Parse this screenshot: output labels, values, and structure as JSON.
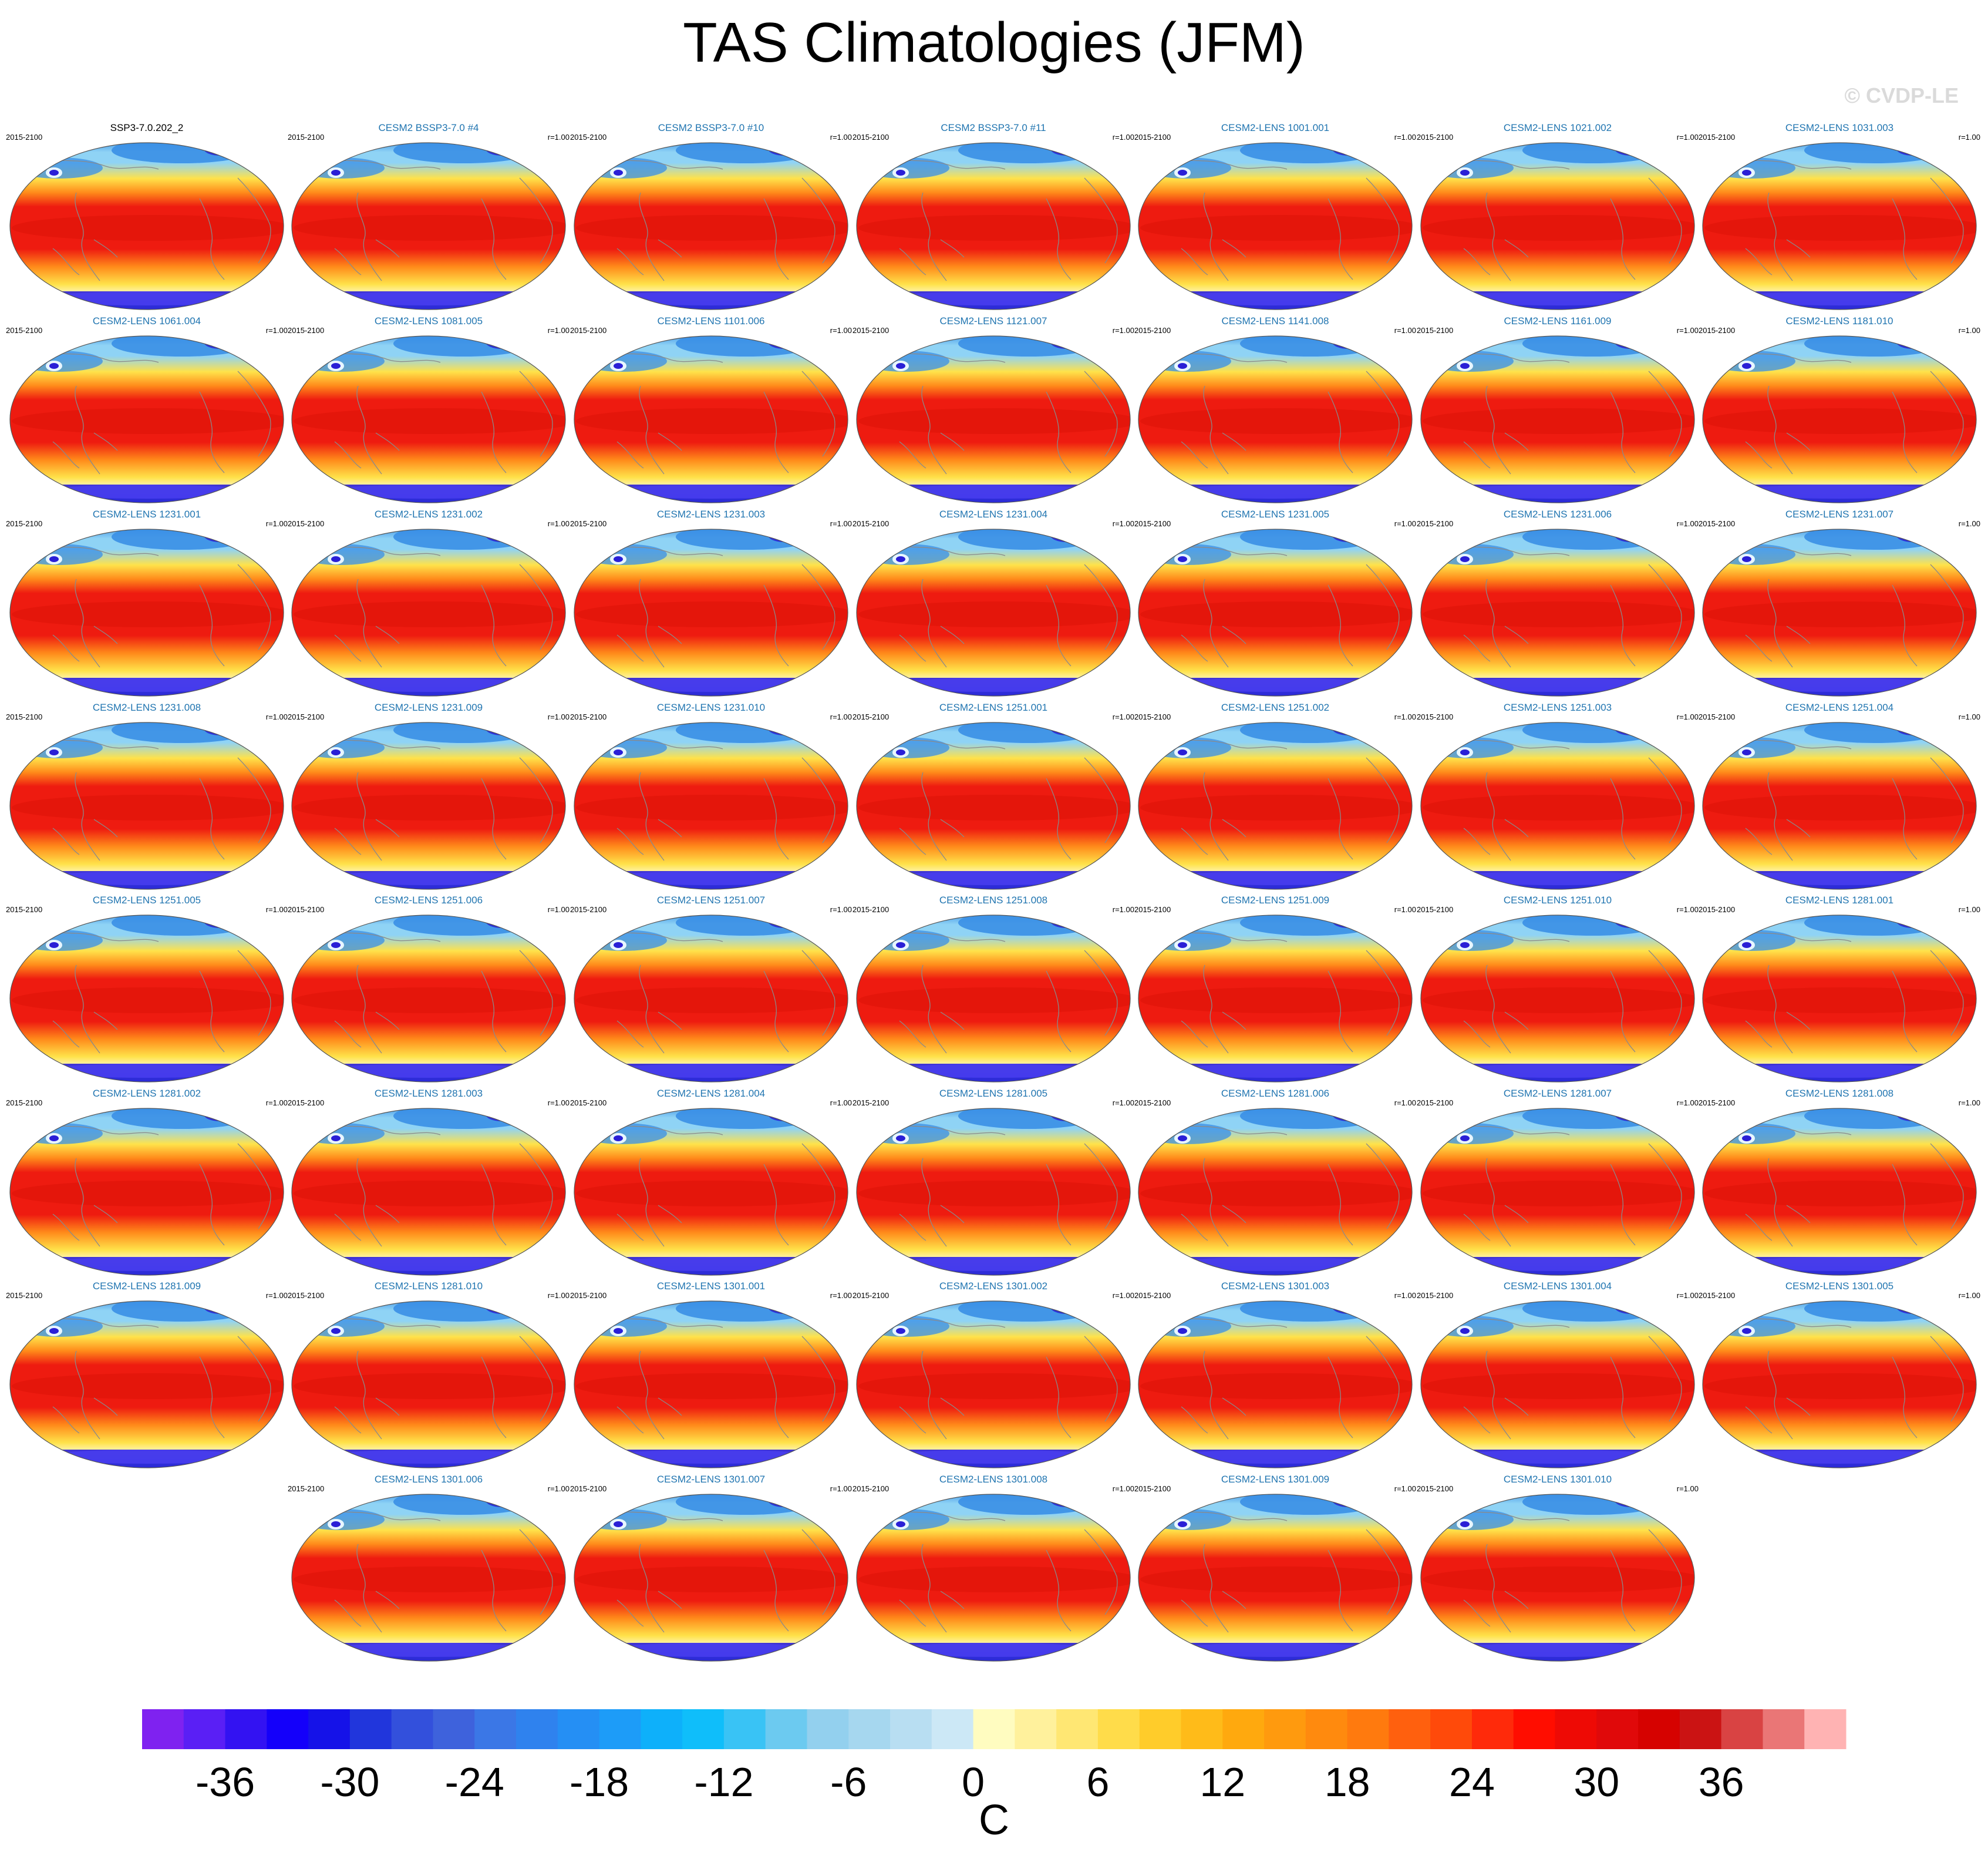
{
  "title": "TAS Climatologies (JFM)",
  "watermark": "© CVDP-LE",
  "panels": [
    {
      "title": "SSP3-7.0.202_2",
      "period": "2015-2100",
      "r": ""
    },
    {
      "title": "CESM2 BSSP3-7.0 #4",
      "period": "2015-2100",
      "r": "r=1.00"
    },
    {
      "title": "CESM2 BSSP3-7.0 #10",
      "period": "2015-2100",
      "r": "r=1.00"
    },
    {
      "title": "CESM2 BSSP3-7.0 #11",
      "period": "2015-2100",
      "r": "r=1.00"
    },
    {
      "title": "CESM2-LENS 1001.001",
      "period": "2015-2100",
      "r": "r=1.00"
    },
    {
      "title": "CESM2-LENS 1021.002",
      "period": "2015-2100",
      "r": "r=1.00"
    },
    {
      "title": "CESM2-LENS 1031.003",
      "period": "2015-2100",
      "r": "r=1.00"
    },
    {
      "title": "CESM2-LENS 1061.004",
      "period": "2015-2100",
      "r": "r=1.00"
    },
    {
      "title": "CESM2-LENS 1081.005",
      "period": "2015-2100",
      "r": "r=1.00"
    },
    {
      "title": "CESM2-LENS 1101.006",
      "period": "2015-2100",
      "r": "r=1.00"
    },
    {
      "title": "CESM2-LENS 1121.007",
      "period": "2015-2100",
      "r": "r=1.00"
    },
    {
      "title": "CESM2-LENS 1141.008",
      "period": "2015-2100",
      "r": "r=1.00"
    },
    {
      "title": "CESM2-LENS 1161.009",
      "period": "2015-2100",
      "r": "r=1.00"
    },
    {
      "title": "CESM2-LENS 1181.010",
      "period": "2015-2100",
      "r": "r=1.00"
    },
    {
      "title": "CESM2-LENS 1231.001",
      "period": "2015-2100",
      "r": "r=1.00"
    },
    {
      "title": "CESM2-LENS 1231.002",
      "period": "2015-2100",
      "r": "r=1.00"
    },
    {
      "title": "CESM2-LENS 1231.003",
      "period": "2015-2100",
      "r": "r=1.00"
    },
    {
      "title": "CESM2-LENS 1231.004",
      "period": "2015-2100",
      "r": "r=1.00"
    },
    {
      "title": "CESM2-LENS 1231.005",
      "period": "2015-2100",
      "r": "r=1.00"
    },
    {
      "title": "CESM2-LENS 1231.006",
      "period": "2015-2100",
      "r": "r=1.00"
    },
    {
      "title": "CESM2-LENS 1231.007",
      "period": "2015-2100",
      "r": "r=1.00"
    },
    {
      "title": "CESM2-LENS 1231.008",
      "period": "2015-2100",
      "r": "r=1.00"
    },
    {
      "title": "CESM2-LENS 1231.009",
      "period": "2015-2100",
      "r": "r=1.00"
    },
    {
      "title": "CESM2-LENS 1231.010",
      "period": "2015-2100",
      "r": "r=1.00"
    },
    {
      "title": "CESM2-LENS 1251.001",
      "period": "2015-2100",
      "r": "r=1.00"
    },
    {
      "title": "CESM2-LENS 1251.002",
      "period": "2015-2100",
      "r": "r=1.00"
    },
    {
      "title": "CESM2-LENS 1251.003",
      "period": "2015-2100",
      "r": "r=1.00"
    },
    {
      "title": "CESM2-LENS 1251.004",
      "period": "2015-2100",
      "r": "r=1.00"
    },
    {
      "title": "CESM2-LENS 1251.005",
      "period": "2015-2100",
      "r": "r=1.00"
    },
    {
      "title": "CESM2-LENS 1251.006",
      "period": "2015-2100",
      "r": "r=1.00"
    },
    {
      "title": "CESM2-LENS 1251.007",
      "period": "2015-2100",
      "r": "r=1.00"
    },
    {
      "title": "CESM2-LENS 1251.008",
      "period": "2015-2100",
      "r": "r=1.00"
    },
    {
      "title": "CESM2-LENS 1251.009",
      "period": "2015-2100",
      "r": "r=1.00"
    },
    {
      "title": "CESM2-LENS 1251.010",
      "period": "2015-2100",
      "r": "r=1.00"
    },
    {
      "title": "CESM2-LENS 1281.001",
      "period": "2015-2100",
      "r": "r=1.00"
    },
    {
      "title": "CESM2-LENS 1281.002",
      "period": "2015-2100",
      "r": "r=1.00"
    },
    {
      "title": "CESM2-LENS 1281.003",
      "period": "2015-2100",
      "r": "r=1.00"
    },
    {
      "title": "CESM2-LENS 1281.004",
      "period": "2015-2100",
      "r": "r=1.00"
    },
    {
      "title": "CESM2-LENS 1281.005",
      "period": "2015-2100",
      "r": "r=1.00"
    },
    {
      "title": "CESM2-LENS 1281.006",
      "period": "2015-2100",
      "r": "r=1.00"
    },
    {
      "title": "CESM2-LENS 1281.007",
      "period": "2015-2100",
      "r": "r=1.00"
    },
    {
      "title": "CESM2-LENS 1281.008",
      "period": "2015-2100",
      "r": "r=1.00"
    },
    {
      "title": "CESM2-LENS 1281.009",
      "period": "2015-2100",
      "r": "r=1.00"
    },
    {
      "title": "CESM2-LENS 1281.010",
      "period": "2015-2100",
      "r": "r=1.00"
    },
    {
      "title": "CESM2-LENS 1301.001",
      "period": "2015-2100",
      "r": "r=1.00"
    },
    {
      "title": "CESM2-LENS 1301.002",
      "period": "2015-2100",
      "r": "r=1.00"
    },
    {
      "title": "CESM2-LENS 1301.003",
      "period": "2015-2100",
      "r": "r=1.00"
    },
    {
      "title": "CESM2-LENS 1301.004",
      "period": "2015-2100",
      "r": "r=1.00"
    },
    {
      "title": "CESM2-LENS 1301.005",
      "period": "2015-2100",
      "r": "r=1.00"
    },
    {
      "title": "CESM2-LENS 1301.006",
      "period": "2015-2100",
      "r": "r=1.00"
    },
    {
      "title": "CESM2-LENS 1301.007",
      "period": "2015-2100",
      "r": "r=1.00"
    },
    {
      "title": "CESM2-LENS 1301.008",
      "period": "2015-2100",
      "r": "r=1.00"
    },
    {
      "title": "CESM2-LENS 1301.009",
      "period": "2015-2100",
      "r": "r=1.00"
    },
    {
      "title": "CESM2-LENS 1301.010",
      "period": "2015-2100",
      "r": "r=1.00"
    }
  ],
  "map_colors": {
    "polar_deep": "#2a1fd6",
    "polar_mid": "#3a8fe6",
    "polar_light": "#8fd3f5",
    "midlat": "#ffe24a",
    "subtropic": "#ff8a1a",
    "tropic": "#ee1b10",
    "coast": "#8a8a8a"
  },
  "colorbar": {
    "unit": "C",
    "tick_labels": [
      "-36",
      "-30",
      "-24",
      "-18",
      "-12",
      "-6",
      "0",
      "6",
      "12",
      "18",
      "24",
      "30",
      "36"
    ],
    "colors": [
      "#7f22f0",
      "#5a1ff5",
      "#3312f2",
      "#1400fa",
      "#1512e8",
      "#2136dc",
      "#3350dc",
      "#3e62dc",
      "#3b77e6",
      "#2f82ee",
      "#258ff4",
      "#1d9cf8",
      "#0eb0fa",
      "#0fbefa",
      "#39c3f5",
      "#6ccaf0",
      "#93d0ee",
      "#a6d7ef",
      "#b8def2",
      "#cce8f6",
      "#fffcc0",
      "#fff19c",
      "#ffe773",
      "#ffdc4a",
      "#ffcc2a",
      "#ffbb19",
      "#ffa90e",
      "#ff9a0e",
      "#ff8a0e",
      "#ff7a0e",
      "#ff600e",
      "#ff4a0a",
      "#ff2a0a",
      "#ff0d00",
      "#ee0a05",
      "#e0090a",
      "#d60200",
      "#cb1313",
      "#d94343",
      "#ea7676",
      "#ffb3b3"
    ]
  }
}
